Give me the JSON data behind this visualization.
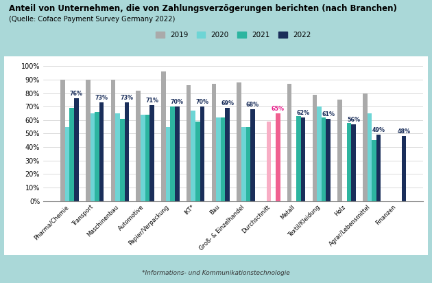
{
  "title": "Anteil von Unternehmen, die von Zahlungsverzögerungen berichten (nach Branchen)",
  "subtitle": "(Quelle: Coface Payment Survey Germany 2022)",
  "footnote": "*Informations- und Kommunikationstechnologie",
  "categories": [
    "Pharma/Chemie",
    "Transport",
    "Maschinenbau",
    "Automotive",
    "Papier/Verpackung",
    "IKT*",
    "Bau",
    "Groß- & Einzelhandel",
    "Durchschnitt",
    "Metall",
    "Textil/Kleidung",
    "Holz",
    "Agrar/Lebensmittel",
    "Finanzen"
  ],
  "series": {
    "2019": [
      0.9,
      0.9,
      0.9,
      0.82,
      0.96,
      0.86,
      0.87,
      0.88,
      null,
      0.87,
      0.79,
      0.75,
      0.8,
      null
    ],
    "2020": [
      0.55,
      0.65,
      0.65,
      0.64,
      0.55,
      0.67,
      0.62,
      0.55,
      0.59,
      null,
      0.7,
      null,
      0.65,
      null
    ],
    "2021": [
      0.69,
      0.66,
      0.61,
      0.64,
      0.7,
      0.59,
      0.62,
      0.55,
      null,
      0.63,
      0.62,
      0.58,
      0.45,
      null
    ],
    "2022": [
      0.76,
      0.73,
      0.73,
      0.71,
      0.7,
      0.7,
      0.69,
      0.68,
      0.65,
      0.62,
      0.61,
      0.57,
      0.49,
      0.48
    ]
  },
  "colors": {
    "2019": "#aaaaaa",
    "2020": "#6dd5d5",
    "2021": "#2db5a0",
    "2022": "#1a2e5a"
  },
  "avg_bar_colors": {
    "2019": null,
    "2020": "#f8aec5",
    "2021": "#f8aec5",
    "2022": "#f06090"
  },
  "value_label_color_default": "#1a2e5a",
  "value_label_avg_color": "#e91e8c",
  "background_outer": "#aad8d8",
  "background_inner": "#ffffff",
  "ylim": [
    0,
    1.05
  ],
  "yticks": [
    0,
    0.1,
    0.2,
    0.3,
    0.4,
    0.5,
    0.6,
    0.7,
    0.8,
    0.9,
    1.0
  ],
  "ytick_labels": [
    "0%",
    "10%",
    "20%",
    "30%",
    "40%",
    "50%",
    "60%",
    "70%",
    "80%",
    "90%",
    "100%"
  ],
  "bar_width": 0.18
}
